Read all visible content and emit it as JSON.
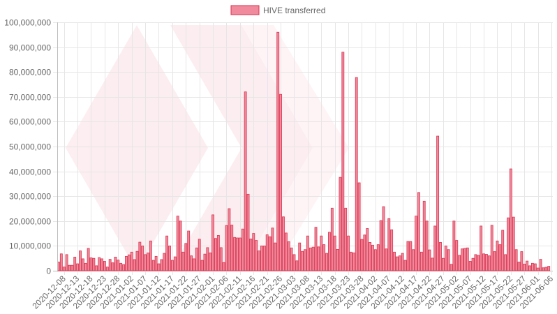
{
  "chart_data": {
    "type": "bar",
    "title": "",
    "xlabel": "",
    "ylabel": "",
    "ylim": [
      0,
      100000000
    ],
    "yticks": [
      "0",
      "10,000,000",
      "20,000,000",
      "30,000,000",
      "40,000,000",
      "50,000,000",
      "60,000,000",
      "70,000,000",
      "80,000,000",
      "90,000,000",
      "100,000,000"
    ],
    "legend_position": "top-center",
    "grid": true,
    "x_start": "2020-12-06",
    "x_end": "2021-06-07",
    "x_tick_labels": [
      "2020-12-08",
      "2020-12-13",
      "2020-12-18",
      "2020-12-23",
      "2020-12-28",
      "2021-01-02",
      "2021-01-07",
      "2021-01-12",
      "2021-01-17",
      "2021-01-22",
      "2021-01-27",
      "2021-02-01",
      "2021-02-06",
      "2021-02-11",
      "2021-02-16",
      "2021-02-21",
      "2021-02-26",
      "2021-03-03",
      "2021-03-08",
      "2021-03-13",
      "2021-03-18",
      "2021-03-23",
      "2021-03-28",
      "2021-04-02",
      "2021-04-07",
      "2021-04-12",
      "2021-04-17",
      "2021-04-22",
      "2021-04-27",
      "2021-05-02",
      "2021-05-07",
      "2021-05-12",
      "2021-05-17",
      "2021-05-22",
      "2021-05-27",
      "2021-06-01",
      "2021-06-06"
    ],
    "series": [
      {
        "name": "HIVE transferred",
        "color": "#f08a9c",
        "border_color": "#d9334f",
        "values": [
          3500000,
          6800000,
          1500000,
          6500000,
          2200000,
          2200000,
          5500000,
          2800000,
          8000000,
          4800000,
          3000000,
          9000000,
          5200000,
          5000000,
          2000000,
          5300000,
          4800000,
          3800000,
          1500000,
          4600000,
          3200000,
          5500000,
          4300000,
          3000000,
          2500000,
          5800000,
          6400000,
          7500000,
          4500000,
          7800000,
          11500000,
          10000000,
          6500000,
          7200000,
          12000000,
          4200000,
          5800000,
          2800000,
          4500000,
          7000000,
          14000000,
          10000000,
          4200000,
          5600000,
          22000000,
          20000000,
          7500000,
          11000000,
          16000000,
          6000000,
          4800000,
          9200000,
          12700000,
          4200000,
          6700000,
          9300000,
          7200000,
          22500000,
          13000000,
          14200000,
          9300000,
          3300000,
          18200000,
          25000000,
          18400000,
          13400000,
          13200000,
          13200000,
          16800000,
          72000000,
          30800000,
          12800000,
          15000000,
          12200000,
          8000000,
          10000000,
          10000000,
          14500000,
          13700000,
          17200000,
          11200000,
          96000000,
          71000000,
          21700000,
          15200000,
          11700000,
          9200000,
          6500000,
          4000000,
          11200000,
          7800000,
          8500000,
          14000000,
          9200000,
          9500000,
          17500000,
          9600000,
          14000000,
          10500000,
          7000000,
          15500000,
          25200000,
          14000000,
          8600000,
          37600000,
          88000000,
          25200000,
          14000000,
          7500000,
          7200000,
          77800000,
          35400000,
          12600000,
          14400000,
          17000000,
          11400000,
          10300000,
          8500000,
          10500000,
          20200000,
          25800000,
          8800000,
          21000000,
          16500000,
          7500000,
          5600000,
          6000000,
          7000000,
          4200000,
          11800000,
          11800000,
          8500000,
          22000000,
          31500000,
          7500000,
          28000000,
          20000000,
          8400000,
          5100000,
          18000000,
          54200000,
          11400000,
          5000000,
          10000000,
          8500000,
          2600000,
          20000000,
          12200000,
          6200000,
          8800000,
          9000000,
          9200000,
          3800000,
          5000000,
          6500000,
          6200000,
          18000000,
          6800000,
          6600000,
          6000000,
          18300000,
          7700000,
          12000000,
          10500000,
          16300000,
          6500000,
          21300000,
          41000000,
          21600000,
          8500000,
          3500000,
          7700000,
          2700000,
          3900000,
          2000000,
          3000000,
          2800000,
          1100000,
          4600000,
          1200000,
          1400000,
          1800000
        ]
      }
    ]
  }
}
